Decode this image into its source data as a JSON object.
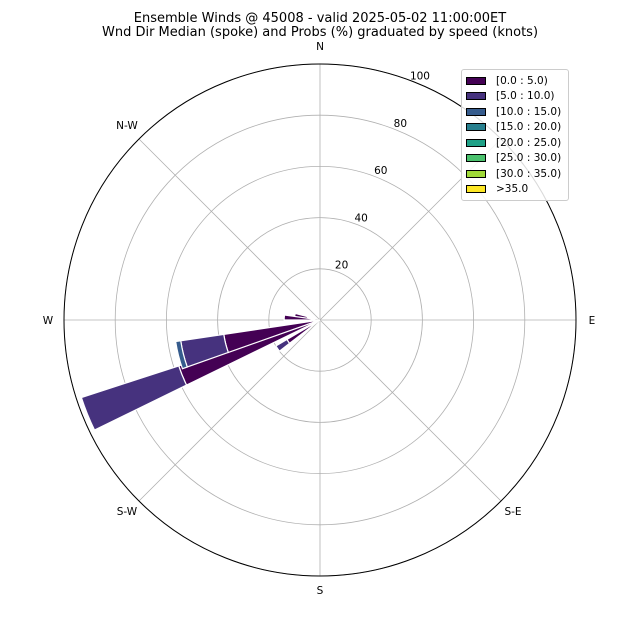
{
  "title_line1": "Ensemble Winds @ 45008 - valid 2025-05-02 11:00:00ET",
  "title_line2": "Wnd Dir Median (spoke) and Probs (%) graduated by speed (knots)",
  "chart_data": {
    "type": "windrose",
    "title": "Ensemble Winds @ 45008 - valid 2025-05-02 11:00:00ET",
    "subtitle": "Wnd Dir Median (spoke) and Probs (%) graduated by speed (knots)",
    "directions": [
      "N",
      "N-W",
      "W",
      "S-W",
      "S",
      "S-E",
      "E"
    ],
    "radial_ticks": [
      "20",
      "40",
      "60",
      "80",
      "100"
    ],
    "radial_values": [
      20,
      40,
      60,
      80,
      100
    ],
    "rmax": 100,
    "grid": true,
    "legend_position": "top-right",
    "bins": [
      {
        "label": "[0.0 : 5.0)",
        "color": "#440154"
      },
      {
        "label": "[5.0 : 10.0)",
        "color": "#46327e"
      },
      {
        "label": "[10.0 : 15.0)",
        "color": "#365c8d"
      },
      {
        "label": "[15.0 : 20.0)",
        "color": "#277f8e"
      },
      {
        "label": "[20.0 : 25.0)",
        "color": "#1fa187"
      },
      {
        "label": "[25.0 : 30.0)",
        "color": "#4ac16d"
      },
      {
        "label": "[30.0 : 35.0)",
        "color": "#a0da39"
      },
      {
        "label": ">35.0",
        "color": "#fde725"
      }
    ],
    "wedges": [
      {
        "bearing_deg": 281,
        "width_deg": 8,
        "cumulative": [
          5,
          10
        ]
      },
      {
        "bearing_deg": 274,
        "width_deg": 8,
        "cumulative": [
          2,
          14
        ]
      },
      {
        "bearing_deg": 248,
        "width_deg": 8,
        "cumulative": [
          0,
          58,
          98
        ]
      },
      {
        "bearing_deg": 256,
        "width_deg": 11,
        "cumulative": [
          0,
          38,
          55,
          57
        ]
      },
      {
        "bearing_deg": 236,
        "width_deg": 7,
        "cumulative": [
          0,
          15,
          20
        ]
      }
    ]
  }
}
